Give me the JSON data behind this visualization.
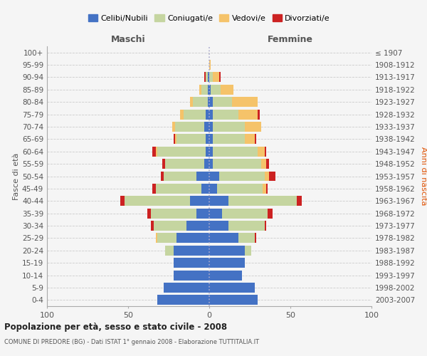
{
  "age_groups": [
    "0-4",
    "5-9",
    "10-14",
    "15-19",
    "20-24",
    "25-29",
    "30-34",
    "35-39",
    "40-44",
    "45-49",
    "50-54",
    "55-59",
    "60-64",
    "65-69",
    "70-74",
    "75-79",
    "80-84",
    "85-89",
    "90-94",
    "95-99",
    "100+"
  ],
  "birth_years": [
    "2003-2007",
    "1998-2002",
    "1993-1997",
    "1988-1992",
    "1983-1987",
    "1978-1982",
    "1973-1977",
    "1968-1972",
    "1963-1967",
    "1958-1962",
    "1953-1957",
    "1948-1952",
    "1943-1947",
    "1938-1942",
    "1933-1937",
    "1928-1932",
    "1923-1927",
    "1918-1922",
    "1913-1917",
    "1908-1912",
    "≤ 1907"
  ],
  "colors": {
    "celibi": "#4472C4",
    "coniugati": "#C5D5A0",
    "vedovi": "#F5C36A",
    "divorziati": "#CC2222"
  },
  "males": {
    "celibi": [
      32,
      28,
      22,
      22,
      22,
      20,
      14,
      8,
      12,
      5,
      8,
      3,
      2,
      2,
      3,
      2,
      1,
      1,
      1,
      0,
      0
    ],
    "coniugati": [
      0,
      0,
      0,
      0,
      5,
      12,
      20,
      28,
      40,
      28,
      20,
      24,
      30,
      18,
      18,
      14,
      9,
      4,
      1,
      0,
      0
    ],
    "vedovi": [
      0,
      0,
      0,
      0,
      0,
      1,
      0,
      0,
      0,
      0,
      0,
      0,
      1,
      1,
      2,
      2,
      2,
      1,
      0,
      0,
      0
    ],
    "divorziati": [
      0,
      0,
      0,
      0,
      0,
      0,
      2,
      2,
      3,
      2,
      2,
      2,
      2,
      1,
      0,
      0,
      0,
      0,
      1,
      0,
      0
    ]
  },
  "females": {
    "celibi": [
      30,
      28,
      20,
      22,
      22,
      18,
      12,
      8,
      12,
      5,
      6,
      2,
      2,
      2,
      2,
      2,
      2,
      1,
      0,
      0,
      0
    ],
    "coniugati": [
      0,
      0,
      0,
      0,
      4,
      10,
      22,
      28,
      42,
      28,
      28,
      30,
      28,
      20,
      20,
      16,
      12,
      6,
      2,
      0,
      0
    ],
    "vedovi": [
      0,
      0,
      0,
      0,
      0,
      0,
      0,
      0,
      0,
      2,
      3,
      3,
      4,
      6,
      10,
      12,
      16,
      8,
      4,
      1,
      0
    ],
    "divorziati": [
      0,
      0,
      0,
      0,
      0,
      1,
      1,
      3,
      3,
      1,
      4,
      2,
      1,
      1,
      0,
      1,
      0,
      0,
      1,
      0,
      0
    ]
  },
  "xlim": 100,
  "xticks": [
    -100,
    -50,
    0,
    50,
    100
  ],
  "xticklabels": [
    "100",
    "50",
    "0",
    "50",
    "100"
  ],
  "title": "Popolazione per età, sesso e stato civile - 2008",
  "subtitle": "COMUNE DI PREDORE (BG) - Dati ISTAT 1° gennaio 2008 - Elaborazione TUTTITALIA.IT",
  "ylabel_left": "Fasce di età",
  "ylabel_right": "Anni di nascita",
  "label_maschi": "Maschi",
  "label_femmine": "Femmine",
  "legend_labels": [
    "Celibi/Nubili",
    "Coniugati/e",
    "Vedovi/e",
    "Divorziati/e"
  ],
  "bg_color": "#F5F5F5",
  "grid_color": "#CCCCCC"
}
